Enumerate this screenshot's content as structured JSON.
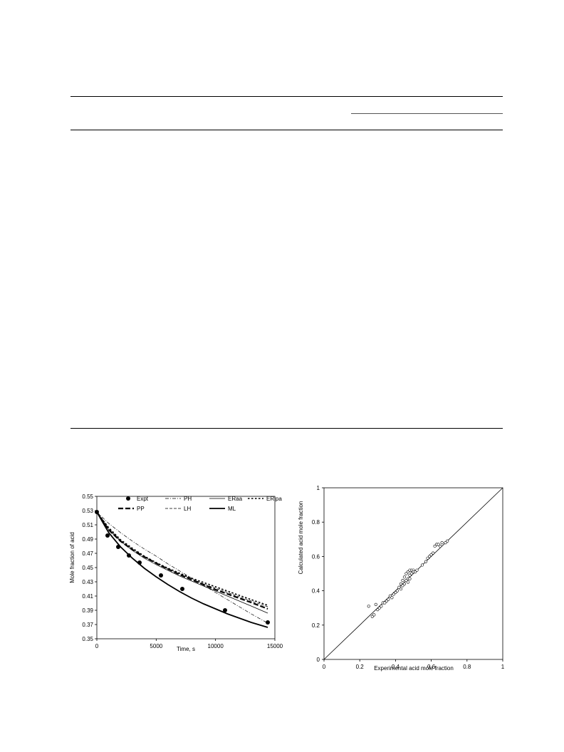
{
  "chart_data": [
    {
      "type": "line",
      "xlabel": "Time, s",
      "ylabel": "Mole fraction of acid",
      "xlim": [
        0,
        15000
      ],
      "ylim": [
        0.35,
        0.55
      ],
      "xticks": [
        "0",
        "5000",
        "10000",
        "15000"
      ],
      "yticks": [
        "0.35",
        "0.37",
        "0.39",
        "0.41",
        "0.43",
        "0.45",
        "0.47",
        "0.49",
        "0.51",
        "0.53",
        "0.55"
      ],
      "grid": false,
      "legend": "top",
      "series": [
        {
          "name": "Expt",
          "style": "marker",
          "x": [
            0,
            900,
            1800,
            2700,
            3600,
            5400,
            7200,
            10800,
            14400
          ],
          "y": [
            0.528,
            0.495,
            0.479,
            0.467,
            0.457,
            0.439,
            0.42,
            0.39,
            0.373
          ]
        },
        {
          "name": "PH",
          "style": "dashdot",
          "x": [
            0,
            1000,
            2000,
            3000,
            4000,
            5000,
            6000,
            7000,
            8000,
            9000,
            10000,
            11000,
            12000,
            13000,
            14400
          ],
          "y": [
            0.528,
            0.512,
            0.499,
            0.487,
            0.476,
            0.466,
            0.455,
            0.445,
            0.435,
            0.425,
            0.415,
            0.405,
            0.395,
            0.385,
            0.372
          ]
        },
        {
          "name": "ERaa",
          "style": "solid-thin",
          "x": [
            0,
            1000,
            2000,
            3000,
            4000,
            5000,
            6000,
            7000,
            8000,
            9000,
            10000,
            11000,
            12000,
            13000,
            14400
          ],
          "y": [
            0.528,
            0.503,
            0.487,
            0.474,
            0.463,
            0.454,
            0.446,
            0.438,
            0.431,
            0.424,
            0.417,
            0.41,
            0.403,
            0.396,
            0.386
          ]
        },
        {
          "name": "ERipa",
          "style": "dotted-bold",
          "x": [
            0,
            1000,
            2000,
            3000,
            4000,
            5000,
            6000,
            7000,
            8000,
            9000,
            10000,
            11000,
            12000,
            13000,
            14400
          ],
          "y": [
            0.528,
            0.506,
            0.489,
            0.477,
            0.466,
            0.457,
            0.449,
            0.442,
            0.435,
            0.429,
            0.423,
            0.417,
            0.411,
            0.405,
            0.397
          ]
        },
        {
          "name": "PP",
          "style": "dashed-bold",
          "x": [
            0,
            1000,
            2000,
            3000,
            4000,
            5000,
            6000,
            7000,
            8000,
            9000,
            10000,
            11000,
            12000,
            13000,
            14400
          ],
          "y": [
            0.528,
            0.503,
            0.487,
            0.475,
            0.465,
            0.456,
            0.448,
            0.44,
            0.433,
            0.426,
            0.419,
            0.413,
            0.407,
            0.401,
            0.392
          ]
        },
        {
          "name": "LH",
          "style": "dashed-thin",
          "x": [
            0,
            1000,
            2000,
            3000,
            4000,
            5000,
            6000,
            7000,
            8000,
            9000,
            10000,
            11000,
            12000,
            13000,
            14400
          ],
          "y": [
            0.528,
            0.505,
            0.488,
            0.476,
            0.465,
            0.456,
            0.448,
            0.441,
            0.434,
            0.427,
            0.421,
            0.415,
            0.409,
            0.403,
            0.395
          ]
        },
        {
          "name": "ML",
          "style": "solid-bold",
          "x": [
            0,
            1000,
            2000,
            3000,
            4000,
            5000,
            6000,
            7000,
            8000,
            9000,
            10000,
            11000,
            12000,
            13000,
            14400
          ],
          "y": [
            0.528,
            0.499,
            0.479,
            0.463,
            0.449,
            0.437,
            0.426,
            0.416,
            0.407,
            0.399,
            0.392,
            0.385,
            0.379,
            0.373,
            0.366
          ]
        }
      ]
    },
    {
      "type": "scatter",
      "xlabel": "Experimental acid mole fraction",
      "ylabel": "Calculated acid mole fraction",
      "xlim": [
        0,
        1
      ],
      "ylim": [
        0,
        1
      ],
      "xticks": [
        "0",
        "0.2",
        "0.4",
        "0.6",
        "0.8",
        "1"
      ],
      "yticks": [
        "0",
        "0.2",
        "0.4",
        "0.6",
        "0.8",
        "1"
      ],
      "grid": false,
      "diagonal": true,
      "points": [
        [
          0.25,
          0.31
        ],
        [
          0.27,
          0.25
        ],
        [
          0.28,
          0.26
        ],
        [
          0.29,
          0.32
        ],
        [
          0.3,
          0.29
        ],
        [
          0.31,
          0.3
        ],
        [
          0.32,
          0.31
        ],
        [
          0.33,
          0.33
        ],
        [
          0.34,
          0.33
        ],
        [
          0.35,
          0.34
        ],
        [
          0.36,
          0.35
        ],
        [
          0.37,
          0.37
        ],
        [
          0.38,
          0.36
        ],
        [
          0.39,
          0.38
        ],
        [
          0.4,
          0.39
        ],
        [
          0.41,
          0.4
        ],
        [
          0.42,
          0.42
        ],
        [
          0.43,
          0.44
        ],
        [
          0.43,
          0.41
        ],
        [
          0.44,
          0.46
        ],
        [
          0.44,
          0.43
        ],
        [
          0.45,
          0.48
        ],
        [
          0.45,
          0.44
        ],
        [
          0.46,
          0.5
        ],
        [
          0.46,
          0.46
        ],
        [
          0.47,
          0.51
        ],
        [
          0.47,
          0.47
        ],
        [
          0.48,
          0.52
        ],
        [
          0.48,
          0.49
        ],
        [
          0.49,
          0.52
        ],
        [
          0.49,
          0.5
        ],
        [
          0.5,
          0.52
        ],
        [
          0.5,
          0.51
        ],
        [
          0.51,
          0.51
        ],
        [
          0.52,
          0.52
        ],
        [
          0.47,
          0.45
        ],
        [
          0.48,
          0.47
        ],
        [
          0.55,
          0.55
        ],
        [
          0.57,
          0.57
        ],
        [
          0.58,
          0.59
        ],
        [
          0.59,
          0.6
        ],
        [
          0.6,
          0.61
        ],
        [
          0.61,
          0.62
        ],
        [
          0.62,
          0.66
        ],
        [
          0.63,
          0.67
        ],
        [
          0.64,
          0.67
        ],
        [
          0.65,
          0.66
        ],
        [
          0.66,
          0.68
        ],
        [
          0.68,
          0.68
        ],
        [
          0.69,
          0.69
        ]
      ]
    }
  ]
}
